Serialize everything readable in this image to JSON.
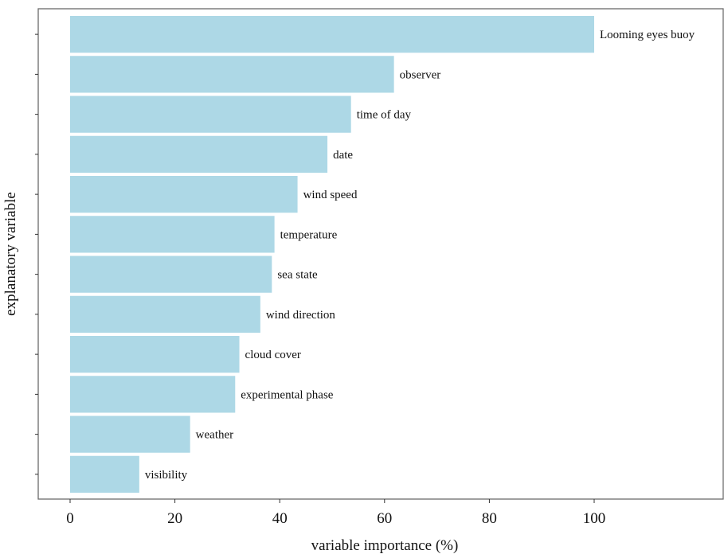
{
  "chart_data": {
    "type": "bar",
    "orientation": "horizontal",
    "categories": [
      "Looming eyes buoy",
      "observer",
      "time of day",
      "date",
      "wind speed",
      "temperature",
      "sea state",
      "wind direction",
      "cloud cover",
      "experimental phase",
      "weather",
      "visibility"
    ],
    "values": [
      100,
      61.8,
      53.6,
      49.1,
      43.4,
      39.0,
      38.5,
      36.3,
      32.3,
      31.5,
      22.9,
      13.2
    ],
    "xlabel": "variable importance (%)",
    "ylabel": "explanatory variable",
    "xticks": [
      0,
      20,
      40,
      60,
      80,
      100
    ],
    "xlim": [
      -6,
      124
    ],
    "grid": false,
    "bar_color": "#add8e6",
    "labels_position": "right of each bar"
  }
}
